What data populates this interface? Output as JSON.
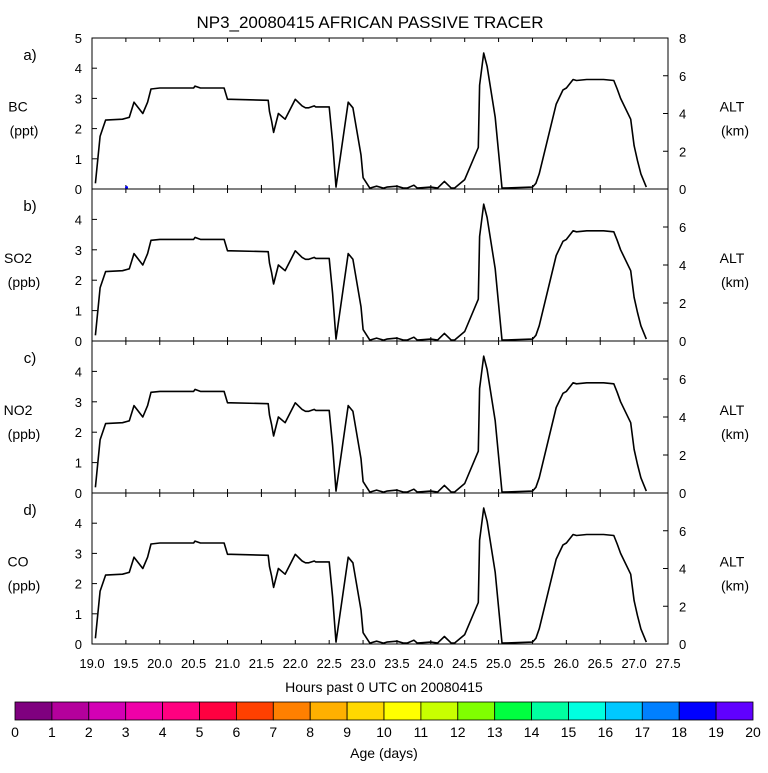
{
  "title": "NP3_20080415 AFRICAN PASSIVE TRACER",
  "xlabel": "Hours past 0 UTC on 20080415",
  "colorbar": {
    "label": "Age (days)",
    "ticks": [
      "0",
      "1",
      "2",
      "3",
      "4",
      "5",
      "6",
      "7",
      "8",
      "9",
      "10",
      "11",
      "12",
      "13",
      "14",
      "15",
      "16",
      "17",
      "18",
      "19",
      "20"
    ],
    "colors": [
      "#7f007f",
      "#b4009c",
      "#d300b4",
      "#ef00a8",
      "#ff0080",
      "#ff0040",
      "#ff4000",
      "#ff8000",
      "#ffb000",
      "#ffd800",
      "#ffff00",
      "#c8ff00",
      "#80ff00",
      "#00ff40",
      "#00ffa0",
      "#00ffe0",
      "#00c8ff",
      "#0080ff",
      "#0000ff",
      "#6000ff"
    ]
  },
  "chart_data": [
    {
      "type": "line",
      "panel_label": "a)",
      "ylabel": "BC",
      "yunit": "(ppt)",
      "yticks": [
        "0",
        "1",
        "2",
        "3",
        "4",
        "5"
      ],
      "ylim": [
        0,
        5
      ],
      "y2label": "ALT",
      "y2unit": "(km)",
      "y2ticks": [
        "0",
        "2",
        "4",
        "6",
        "8"
      ],
      "y2lim": [
        0,
        8
      ],
      "xlim": [
        19.0,
        27.5
      ],
      "xticks": [
        "19.0",
        "19.5",
        "20.0",
        "20.5",
        "21.0",
        "21.5",
        "22.0",
        "22.5",
        "23.0",
        "23.5",
        "24.0",
        "24.5",
        "25.0",
        "25.5",
        "26.0",
        "26.5",
        "27.0",
        "27.5"
      ],
      "tracer_points": [
        {
          "x": 19.51,
          "y": 0.05,
          "age_days": 18
        }
      ],
      "series": [
        {
          "axis": "ALT",
          "x": [
            19.05,
            19.12,
            19.2,
            19.45,
            19.55,
            19.62,
            19.75,
            19.82,
            19.87,
            20.0,
            20.5,
            20.52,
            20.6,
            20.95,
            21.0,
            21.05,
            21.6,
            21.62,
            21.65,
            21.68,
            21.75,
            21.85,
            22.0,
            22.1,
            22.15,
            22.2,
            22.28,
            22.3,
            22.5,
            22.55,
            22.6,
            22.78,
            22.85,
            22.97,
            23.0,
            23.1,
            23.2,
            23.3,
            23.35,
            23.5,
            23.6,
            23.65,
            23.75,
            23.8,
            24.0,
            24.1,
            24.2,
            24.3,
            24.35,
            24.5,
            24.7,
            24.72,
            24.78,
            24.83,
            24.95,
            25.05,
            25.5,
            25.55,
            25.6,
            25.85,
            25.95,
            26.0,
            26.1,
            26.15,
            26.3,
            26.45,
            26.55,
            26.7,
            26.75,
            26.8,
            26.95,
            27.0,
            27.05,
            27.1,
            27.18
          ],
          "y": [
            0.3,
            2.8,
            3.65,
            3.7,
            3.8,
            4.6,
            4.0,
            4.6,
            5.3,
            5.35,
            5.35,
            5.45,
            5.35,
            5.35,
            4.75,
            4.75,
            4.7,
            4.1,
            3.6,
            3.0,
            4.0,
            3.7,
            4.75,
            4.4,
            4.3,
            4.3,
            4.4,
            4.35,
            4.35,
            2.5,
            0.1,
            4.6,
            4.3,
            1.8,
            0.6,
            0.05,
            0.15,
            0.05,
            0.1,
            0.15,
            0.05,
            0.05,
            0.2,
            0.05,
            0.1,
            0.05,
            0.4,
            0.05,
            0.05,
            0.5,
            2.2,
            5.5,
            7.2,
            6.5,
            3.8,
            0.05,
            0.1,
            0.3,
            0.8,
            4.5,
            5.25,
            5.35,
            5.8,
            5.75,
            5.8,
            5.8,
            5.8,
            5.75,
            5.3,
            4.8,
            3.7,
            2.3,
            1.5,
            0.8,
            0.1
          ]
        }
      ]
    },
    {
      "type": "line",
      "panel_label": "b)",
      "ylabel": "SO2",
      "yunit": "(ppb)",
      "yticks": [
        "0",
        "1",
        "2",
        "3",
        "4"
      ],
      "ylim": [
        0,
        5
      ],
      "y2label": "ALT",
      "y2unit": "(km)",
      "y2ticks": [
        "0",
        "2",
        "4",
        "6"
      ],
      "y2lim": [
        0,
        8
      ],
      "xlim": [
        19.0,
        27.5
      ],
      "tracer_points": [],
      "series": [
        {
          "axis": "ALT",
          "x": [
            19.05,
            19.12,
            19.2,
            19.45,
            19.55,
            19.62,
            19.75,
            19.82,
            19.87,
            20.0,
            20.5,
            20.52,
            20.6,
            20.95,
            21.0,
            21.05,
            21.6,
            21.62,
            21.65,
            21.68,
            21.75,
            21.85,
            22.0,
            22.1,
            22.15,
            22.2,
            22.28,
            22.3,
            22.5,
            22.55,
            22.6,
            22.78,
            22.85,
            22.97,
            23.0,
            23.1,
            23.2,
            23.3,
            23.35,
            23.5,
            23.6,
            23.65,
            23.75,
            23.8,
            24.0,
            24.1,
            24.2,
            24.3,
            24.35,
            24.5,
            24.7,
            24.72,
            24.78,
            24.83,
            24.95,
            25.05,
            25.5,
            25.55,
            25.6,
            25.85,
            25.95,
            26.0,
            26.1,
            26.15,
            26.3,
            26.45,
            26.55,
            26.7,
            26.75,
            26.8,
            26.95,
            27.0,
            27.05,
            27.1,
            27.18
          ],
          "y": [
            0.3,
            2.8,
            3.65,
            3.7,
            3.8,
            4.6,
            4.0,
            4.6,
            5.3,
            5.35,
            5.35,
            5.45,
            5.35,
            5.35,
            4.75,
            4.75,
            4.7,
            4.1,
            3.6,
            3.0,
            4.0,
            3.7,
            4.75,
            4.4,
            4.3,
            4.3,
            4.4,
            4.35,
            4.35,
            2.5,
            0.1,
            4.6,
            4.3,
            1.8,
            0.6,
            0.05,
            0.15,
            0.05,
            0.1,
            0.15,
            0.05,
            0.05,
            0.2,
            0.05,
            0.1,
            0.05,
            0.4,
            0.05,
            0.05,
            0.5,
            2.2,
            5.5,
            7.2,
            6.5,
            3.8,
            0.05,
            0.1,
            0.3,
            0.8,
            4.5,
            5.25,
            5.35,
            5.8,
            5.75,
            5.8,
            5.8,
            5.8,
            5.75,
            5.3,
            4.8,
            3.7,
            2.3,
            1.5,
            0.8,
            0.1
          ]
        }
      ]
    },
    {
      "type": "line",
      "panel_label": "c)",
      "ylabel": "NO2",
      "yunit": "(ppb)",
      "yticks": [
        "0",
        "1",
        "2",
        "3",
        "4"
      ],
      "ylim": [
        0,
        5
      ],
      "y2label": "ALT",
      "y2unit": "(km)",
      "y2ticks": [
        "0",
        "2",
        "4",
        "6"
      ],
      "y2lim": [
        0,
        8
      ],
      "xlim": [
        19.0,
        27.5
      ],
      "tracer_points": [],
      "series": [
        {
          "axis": "ALT",
          "x": [
            19.05,
            19.12,
            19.2,
            19.45,
            19.55,
            19.62,
            19.75,
            19.82,
            19.87,
            20.0,
            20.5,
            20.52,
            20.6,
            20.95,
            21.0,
            21.05,
            21.6,
            21.62,
            21.65,
            21.68,
            21.75,
            21.85,
            22.0,
            22.1,
            22.15,
            22.2,
            22.28,
            22.3,
            22.5,
            22.55,
            22.6,
            22.78,
            22.85,
            22.97,
            23.0,
            23.1,
            23.2,
            23.3,
            23.35,
            23.5,
            23.6,
            23.65,
            23.75,
            23.8,
            24.0,
            24.1,
            24.2,
            24.3,
            24.35,
            24.5,
            24.7,
            24.72,
            24.78,
            24.83,
            24.95,
            25.05,
            25.5,
            25.55,
            25.6,
            25.85,
            25.95,
            26.0,
            26.1,
            26.15,
            26.3,
            26.45,
            26.55,
            26.7,
            26.75,
            26.8,
            26.95,
            27.0,
            27.05,
            27.1,
            27.18
          ],
          "y": [
            0.3,
            2.8,
            3.65,
            3.7,
            3.8,
            4.6,
            4.0,
            4.6,
            5.3,
            5.35,
            5.35,
            5.45,
            5.35,
            5.35,
            4.75,
            4.75,
            4.7,
            4.1,
            3.6,
            3.0,
            4.0,
            3.7,
            4.75,
            4.4,
            4.3,
            4.3,
            4.4,
            4.35,
            4.35,
            2.5,
            0.1,
            4.6,
            4.3,
            1.8,
            0.6,
            0.05,
            0.15,
            0.05,
            0.1,
            0.15,
            0.05,
            0.05,
            0.2,
            0.05,
            0.1,
            0.05,
            0.4,
            0.05,
            0.05,
            0.5,
            2.2,
            5.5,
            7.2,
            6.5,
            3.8,
            0.05,
            0.1,
            0.3,
            0.8,
            4.5,
            5.25,
            5.35,
            5.8,
            5.75,
            5.8,
            5.8,
            5.8,
            5.75,
            5.3,
            4.8,
            3.7,
            2.3,
            1.5,
            0.8,
            0.1
          ]
        }
      ]
    },
    {
      "type": "line",
      "panel_label": "d)",
      "ylabel": "CO",
      "yunit": "(ppb)",
      "yticks": [
        "0",
        "1",
        "2",
        "3",
        "4"
      ],
      "ylim": [
        0,
        5
      ],
      "y2label": "ALT",
      "y2unit": "(km)",
      "y2ticks": [
        "0",
        "2",
        "4",
        "6"
      ],
      "y2lim": [
        0,
        8
      ],
      "xlim": [
        19.0,
        27.5
      ],
      "tracer_points": [],
      "series": [
        {
          "axis": "ALT",
          "x": [
            19.05,
            19.12,
            19.2,
            19.45,
            19.55,
            19.62,
            19.75,
            19.82,
            19.87,
            20.0,
            20.5,
            20.52,
            20.6,
            20.95,
            21.0,
            21.05,
            21.6,
            21.62,
            21.65,
            21.68,
            21.75,
            21.85,
            22.0,
            22.1,
            22.15,
            22.2,
            22.28,
            22.3,
            22.5,
            22.55,
            22.6,
            22.78,
            22.85,
            22.97,
            23.0,
            23.1,
            23.2,
            23.3,
            23.35,
            23.5,
            23.6,
            23.65,
            23.75,
            23.8,
            24.0,
            24.1,
            24.2,
            24.3,
            24.35,
            24.5,
            24.7,
            24.72,
            24.78,
            24.83,
            24.95,
            25.05,
            25.5,
            25.55,
            25.6,
            25.85,
            25.95,
            26.0,
            26.1,
            26.15,
            26.3,
            26.45,
            26.55,
            26.7,
            26.75,
            26.8,
            26.95,
            27.0,
            27.05,
            27.1,
            27.18
          ],
          "y": [
            0.3,
            2.8,
            3.65,
            3.7,
            3.8,
            4.6,
            4.0,
            4.6,
            5.3,
            5.35,
            5.35,
            5.45,
            5.35,
            5.35,
            4.75,
            4.75,
            4.7,
            4.1,
            3.6,
            3.0,
            4.0,
            3.7,
            4.75,
            4.4,
            4.3,
            4.3,
            4.4,
            4.35,
            4.35,
            2.5,
            0.1,
            4.6,
            4.3,
            1.8,
            0.6,
            0.05,
            0.15,
            0.05,
            0.1,
            0.15,
            0.05,
            0.05,
            0.2,
            0.05,
            0.1,
            0.05,
            0.4,
            0.05,
            0.05,
            0.5,
            2.2,
            5.5,
            7.2,
            6.5,
            3.8,
            0.05,
            0.1,
            0.3,
            0.8,
            4.5,
            5.25,
            5.35,
            5.8,
            5.75,
            5.8,
            5.8,
            5.8,
            5.75,
            5.3,
            4.8,
            3.7,
            2.3,
            1.5,
            0.8,
            0.1
          ]
        }
      ]
    }
  ]
}
